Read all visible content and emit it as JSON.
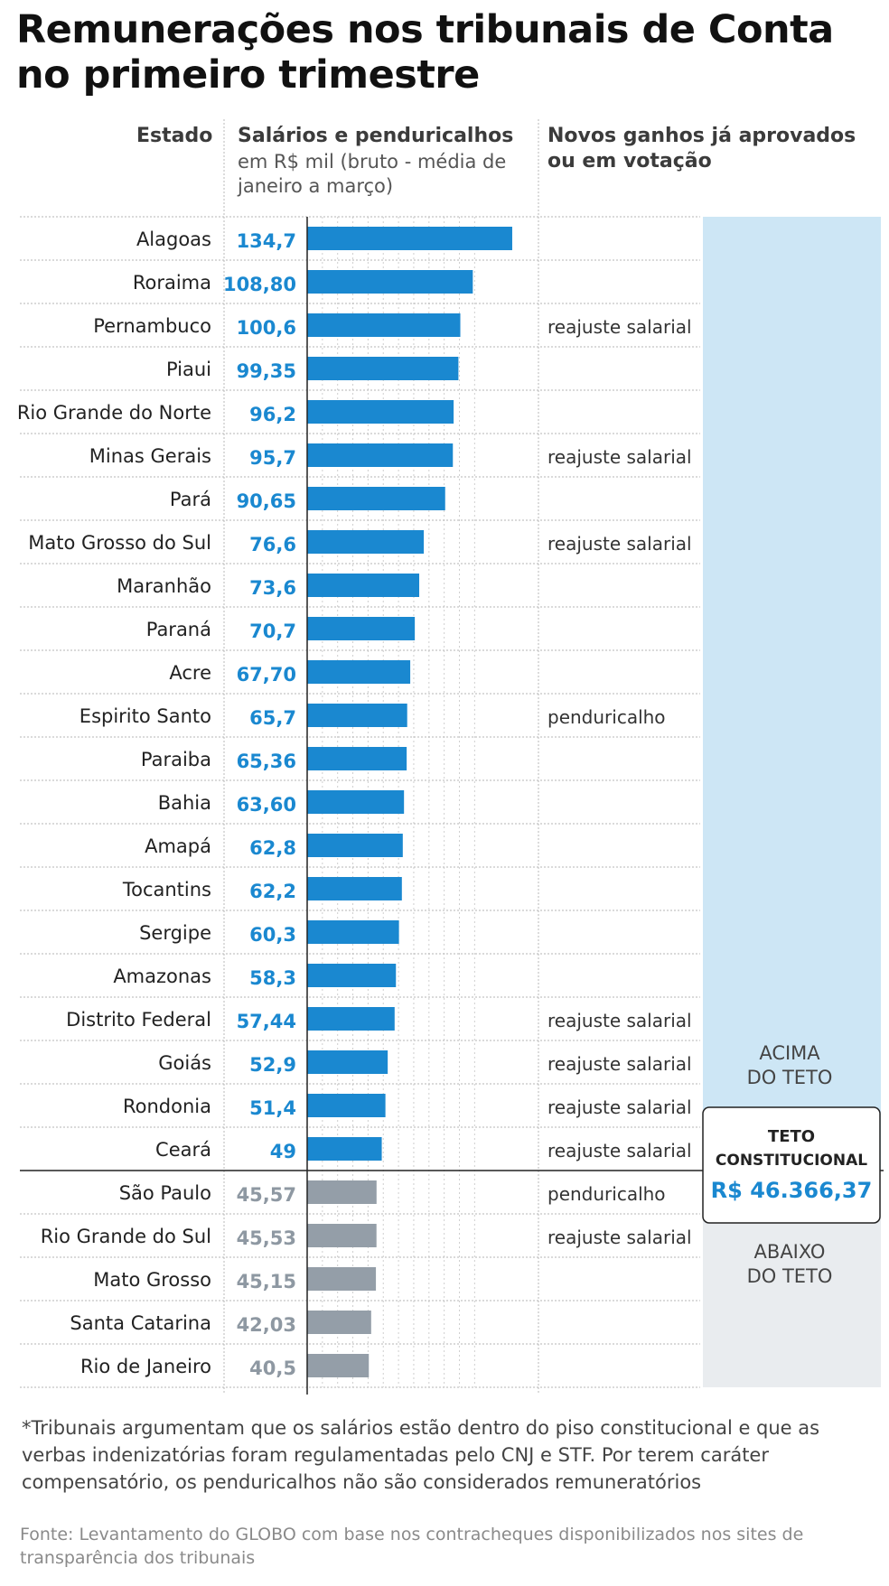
{
  "title": "Remunerações nos tribunais de Conta no primeiro trimestre",
  "headers": {
    "state": "Estado",
    "salary": "Salários e penduricalhos",
    "salary_sub_1": "em R$ mil (bruto - média de",
    "salary_sub_2": "janeiro a março)",
    "new_gains_1": "Novos ganhos já aprovados",
    "new_gains_2": "ou em votação"
  },
  "colors": {
    "above_bar": "#1a88d0",
    "above_label": "#1a88d0",
    "below_bar": "#949ea8",
    "below_label": "#8e98a2",
    "above_panel": "#cde6f5",
    "below_panel": "#e9ecef"
  },
  "chart_data": {
    "type": "bar",
    "orientation": "horizontal",
    "categories": [
      "Alagoas",
      "Roraima",
      "Pernambuco",
      "Piaui",
      "Rio Grande do Norte",
      "Minas Gerais",
      "Pará",
      "Mato Grosso do Sul",
      "Maranhão",
      "Paraná",
      "Acre",
      "Espirito Santo",
      "Paraiba",
      "Bahia",
      "Amapá",
      "Tocantins",
      "Sergipe",
      "Amazonas",
      "Distrito Federal",
      "Goiás",
      "Rondonia",
      "Ceará",
      "São Paulo",
      "Rio Grande do Sul",
      "Mato Grosso",
      "Santa Catarina",
      "Rio de Janeiro"
    ],
    "values": [
      134.7,
      108.8,
      100.6,
      99.35,
      96.2,
      95.7,
      90.65,
      76.6,
      73.6,
      70.7,
      67.7,
      65.7,
      65.36,
      63.6,
      62.8,
      62.2,
      60.3,
      58.3,
      57.44,
      52.9,
      51.4,
      49,
      45.57,
      45.53,
      45.15,
      42.03,
      40.5
    ],
    "value_labels": [
      "134,7",
      "108,80",
      "100,6",
      "99,35",
      "96,2",
      "95,7",
      "90,65",
      "76,6",
      "73,6",
      "70,7",
      "67,70",
      "65,7",
      "65,36",
      "63,60",
      "62,8",
      "62,2",
      "60,3",
      "58,3",
      "57,44",
      "52,9",
      "51,4",
      "49",
      "45,57",
      "45,53",
      "45,15",
      "42,03",
      "40,5"
    ],
    "new_gains": [
      "",
      "",
      "reajuste salarial",
      "",
      "",
      "reajuste salarial",
      "",
      "reajuste salarial",
      "",
      "",
      "",
      "penduricalho",
      "",
      "",
      "",
      "",
      "",
      "",
      "reajuste salarial",
      "reajuste salarial",
      "reajuste salarial",
      "reajuste salarial",
      "penduricalho",
      "reajuste salarial",
      "",
      "",
      ""
    ],
    "threshold": {
      "value": 46.36637,
      "title_1": "TETO",
      "title_2": "CONSTITUCIONAL",
      "amount": "R$ 46.366,37",
      "above_label_1": "ACIMA",
      "above_label_2": "DO TETO",
      "below_label_1": "ABAIXO",
      "below_label_2": "DO TETO"
    },
    "xlim": [
      0,
      140
    ],
    "grid": true
  },
  "footnote": "*Tribunais argumentam que os salários estão dentro do piso constitucional e que as verbas indenizatórias foram regulamentadas pelo CNJ e STF. Por terem caráter compensatório, os penduricalhos não são considerados remuneratórios",
  "source": "Fonte: Levantamento do GLOBO com base nos contracheques disponibilizados nos sites de transparência dos tribunais"
}
